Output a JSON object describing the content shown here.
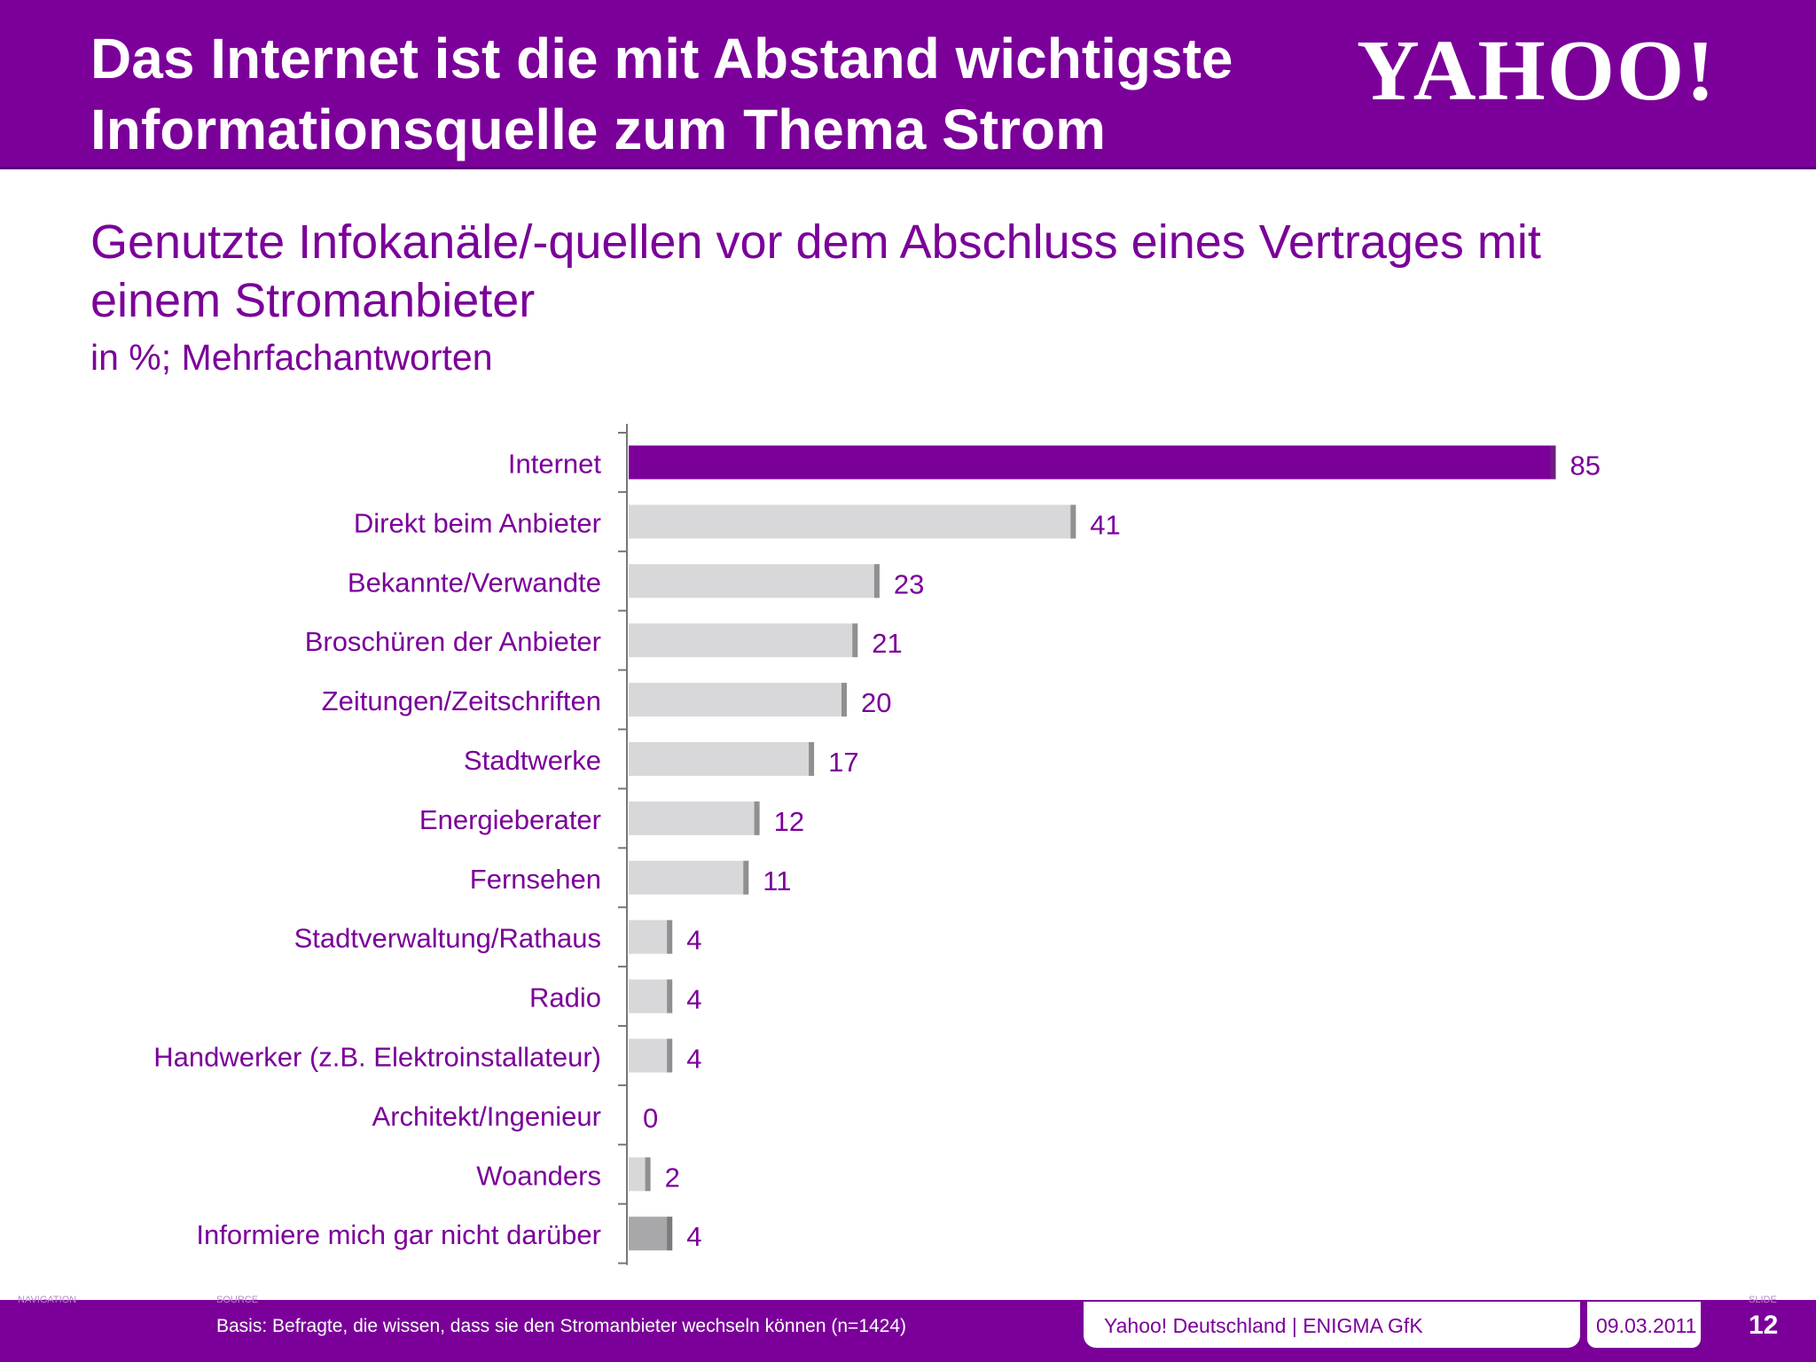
{
  "header": {
    "title_line1": "Das Internet ist die mit Abstand wichtigste",
    "title_line2": "Informationsquelle zum Thema Strom",
    "logo": "YAHOO!"
  },
  "subtitle": {
    "line1": "Genutzte Infokanäle/-quellen vor dem Abschluss eines Vertrages mit",
    "line2": "einem Stromanbieter",
    "unit": "in %; Mehrfachantworten"
  },
  "chart_data": {
    "type": "bar",
    "orientation": "horizontal",
    "categories": [
      "Internet",
      "Direkt beim Anbieter",
      "Bekannte/Verwandte",
      "Broschüren der Anbieter",
      "Zeitungen/Zeitschriften",
      "Stadtwerke",
      "Energieberater",
      "Fernsehen",
      "Stadtverwaltung/Rathaus",
      "Radio",
      "Handwerker (z.B. Elektroinstallateur)",
      "Architekt/Ingenieur",
      "Woanders",
      "Informiere mich gar nicht darüber"
    ],
    "values": [
      85,
      41,
      23,
      21,
      20,
      17,
      12,
      11,
      4,
      4,
      4,
      0,
      2,
      4
    ],
    "value_labels": [
      "85",
      "41",
      "23",
      "21",
      "20",
      "17",
      "12",
      "11",
      "4",
      "4",
      "4",
      "0",
      "2",
      "4"
    ],
    "xlim": [
      0,
      100
    ],
    "grid": false,
    "colors": {
      "highlight": "#7b0099",
      "default": "#d8d8da",
      "last": "#a8a8aa",
      "label": "#7b0099"
    }
  },
  "footer": {
    "left_label": "NAVIGATION",
    "mid_label": "SOURCE",
    "right_label": "SLIDE",
    "basis": "Basis:  Befragte, die wissen, dass sie den Stromanbieter wechseln können (n=1424)",
    "source": "Yahoo! Deutschland | ENIGMA GfK",
    "date": "09.03.2011",
    "page": "12"
  }
}
